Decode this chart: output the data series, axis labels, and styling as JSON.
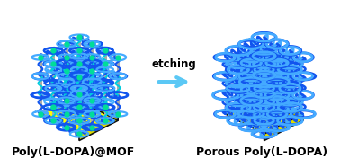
{
  "bg_color": "#ffffff",
  "label_left": "Poly(L-DOPA)@MOF",
  "label_right": "Porous Poly(L-DOPA)",
  "arrow_label": "etching",
  "arrow_color": "#5bc8f5",
  "polymer_blue": "#1155ee",
  "polymer_light_blue": "#44aaff",
  "polymer_cyan": "#00ccdd",
  "node_color": "#00dd99",
  "mof_rod_color": "#aaaaaa",
  "mof_rod_dark": "#666666",
  "substrate_top": "#ffff00",
  "substrate_front": "#dddd00",
  "substrate_right": "#aaa800",
  "substrate_edge": "#111111",
  "label_fontsize": 9,
  "arrow_fontsize": 8.5,
  "fig_width": 3.78,
  "fig_height": 1.86,
  "dpi": 100
}
